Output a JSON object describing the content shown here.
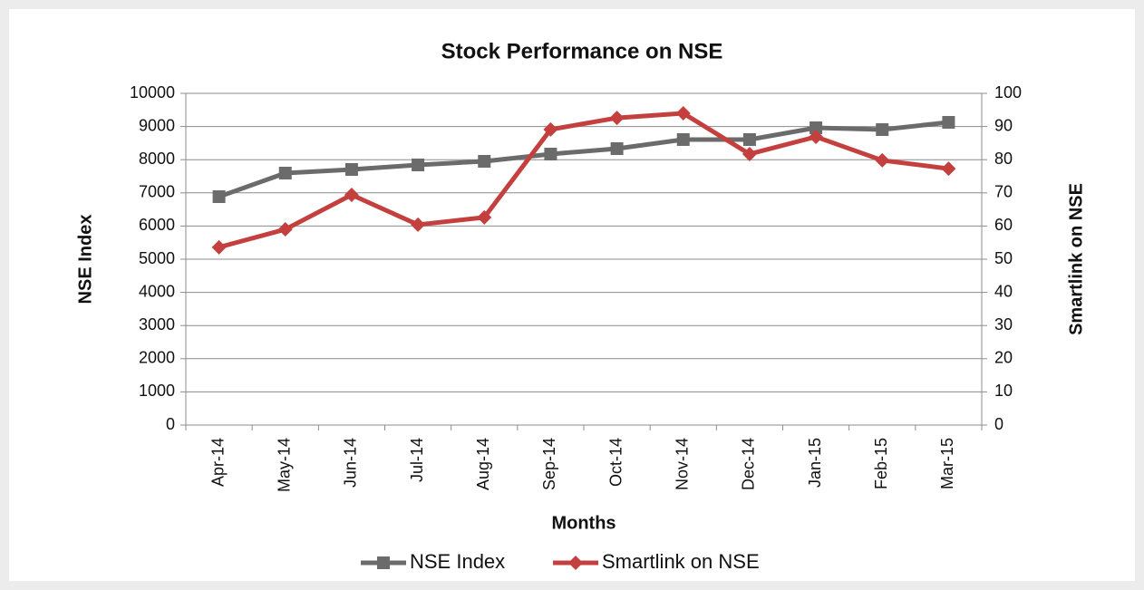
{
  "chart_data": {
    "type": "line",
    "title": "Stock Performance on NSE",
    "x_label": "Months",
    "y_label": "NSE Index",
    "y2_label": "Smartlink on NSE",
    "categories": [
      "Apr-14",
      "May-14",
      "Jun-14",
      "Jul-14",
      "Aug-14",
      "Sep-14",
      "Oct-14",
      "Nov-14",
      "Dec-14",
      "Jan-15",
      "Feb-15",
      "Mar-15"
    ],
    "series": [
      {
        "name": "NSE Index",
        "color": "#6b6b6b",
        "marker": "square",
        "values": [
          6885,
          7596,
          7705,
          7842,
          7951,
          8169,
          8333,
          8607,
          8607,
          8962,
          8907,
          9126
        ]
      },
      {
        "name": "Smartlink on NSE",
        "color": "#c4403e",
        "marker": "diamond",
        "axis": "y2",
        "values": [
          53.6,
          59.0,
          69.4,
          60.4,
          62.6,
          89.1,
          92.6,
          94.0,
          81.7,
          86.9,
          79.8,
          77.3
        ]
      }
    ],
    "ylim": [
      0,
      10000
    ],
    "yticks": [
      0,
      1000,
      2000,
      3000,
      4000,
      5000,
      6000,
      7000,
      8000,
      9000,
      10000
    ],
    "y2lim": [
      0,
      100
    ],
    "y2ticks": [
      0,
      10,
      20,
      30,
      40,
      50,
      60,
      70,
      80,
      90,
      100
    ],
    "grid": true,
    "legend": "bottom"
  }
}
